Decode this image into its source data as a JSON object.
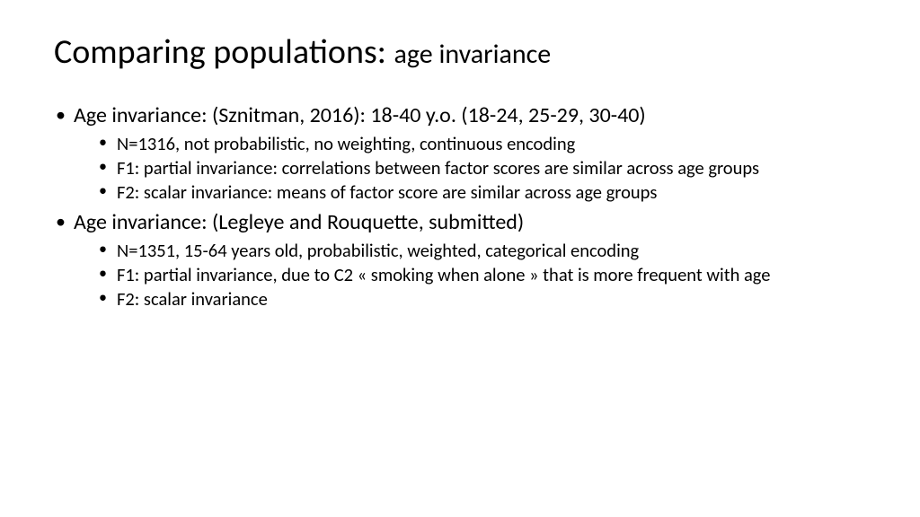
{
  "title": {
    "main": "Comparing populations: ",
    "sub": "age invariance",
    "main_fontsize": 38,
    "sub_fontsize": 30
  },
  "bullets": [
    {
      "text": "Age invariance: (Sznitman, 2016): 18-40 y.o. (18-24, 25-29, 30-40)",
      "children": [
        "N=1316, not probabilistic, no weighting, continuous encoding",
        "F1: partial invariance: correlations between factor scores are similar across age groups",
        "F2: scalar invariance: means of factor score are similar across age groups"
      ]
    },
    {
      "text": "Age invariance: (Legleye and Rouquette, submitted)",
      "children": [
        "N=1351, 15-64 years old, probabilistic, weighted, categorical encoding",
        "F1: partial invariance, due to C2 « smoking when alone » that is more frequent with age",
        "F2: scalar invariance"
      ]
    }
  ],
  "style": {
    "background_color": "#ffffff",
    "text_color": "#000000",
    "font_family": "Calibri",
    "level1_fontsize": 24,
    "level2_fontsize": 20.5,
    "slide_width": 1024,
    "slide_height": 576
  }
}
